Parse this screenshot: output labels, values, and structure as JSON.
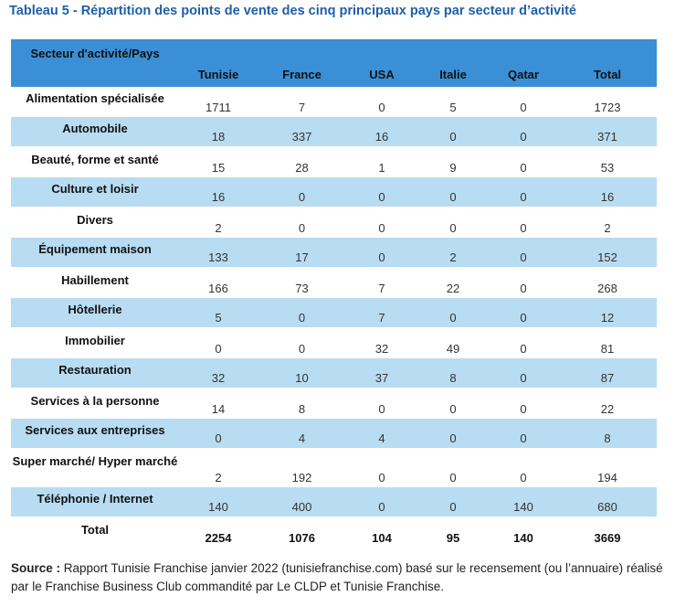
{
  "title": "Tableau 5 - Répartition des points de vente des cinq principaux pays par secteur d’activité",
  "table": {
    "headers": [
      "Secteur d'activité/Pays",
      "Tunisie",
      "France",
      "USA",
      "Italie",
      "Qatar",
      "Total"
    ],
    "rows": [
      {
        "sector": "Alimentation spécialisée",
        "values": [
          "1711",
          "7",
          "0",
          "5",
          "0",
          "1723"
        ]
      },
      {
        "sector": "Automobile",
        "values": [
          "18",
          "337",
          "16",
          "0",
          "0",
          "371"
        ]
      },
      {
        "sector": "Beauté, forme et santé",
        "values": [
          "15",
          "28",
          "1",
          "9",
          "0",
          "53"
        ]
      },
      {
        "sector": "Culture et loisir",
        "values": [
          "16",
          "0",
          "0",
          "0",
          "0",
          "16"
        ]
      },
      {
        "sector": "Divers",
        "values": [
          "2",
          "0",
          "0",
          "0",
          "0",
          "2"
        ]
      },
      {
        "sector": "Équipement maison",
        "values": [
          "133",
          "17",
          "0",
          "2",
          "0",
          "152"
        ]
      },
      {
        "sector": "Habillement",
        "values": [
          "166",
          "73",
          "7",
          "22",
          "0",
          "268"
        ]
      },
      {
        "sector": "Hôtellerie",
        "values": [
          "5",
          "0",
          "7",
          "0",
          "0",
          "12"
        ]
      },
      {
        "sector": "Immobilier",
        "values": [
          "0",
          "0",
          "32",
          "49",
          "0",
          "81"
        ]
      },
      {
        "sector": "Restauration",
        "values": [
          "32",
          "10",
          "37",
          "8",
          "0",
          "87"
        ]
      },
      {
        "sector": "Services à la personne",
        "values": [
          "14",
          "8",
          "0",
          "0",
          "0",
          "22"
        ]
      },
      {
        "sector": "Services aux entreprises",
        "values": [
          "0",
          "4",
          "4",
          "0",
          "0",
          "8"
        ]
      },
      {
        "sector": "Super marché/ Hyper marché",
        "values": [
          "2",
          "192",
          "0",
          "0",
          "0",
          "194"
        ]
      },
      {
        "sector": "Téléphonie / Internet",
        "values": [
          "140",
          "400",
          "0",
          "0",
          "140",
          "680"
        ]
      }
    ],
    "total": {
      "sector": "Total",
      "values": [
        "2254",
        "1076",
        "104",
        "95",
        "140",
        "3669"
      ]
    }
  },
  "source": {
    "label": "Source :",
    "text": "Rapport Tunisie Franchise janvier 2022 (tunisiefranchise.com) basé sur le recensement (ou l’annuaire) réalisé par le Franchise Business Club commandité par Le CLDP et Tunisie Franchise."
  },
  "colors": {
    "title": "#1f5fa8",
    "header_bg": "#3a8fd6",
    "stripe_bg": "#b8dcf2"
  }
}
